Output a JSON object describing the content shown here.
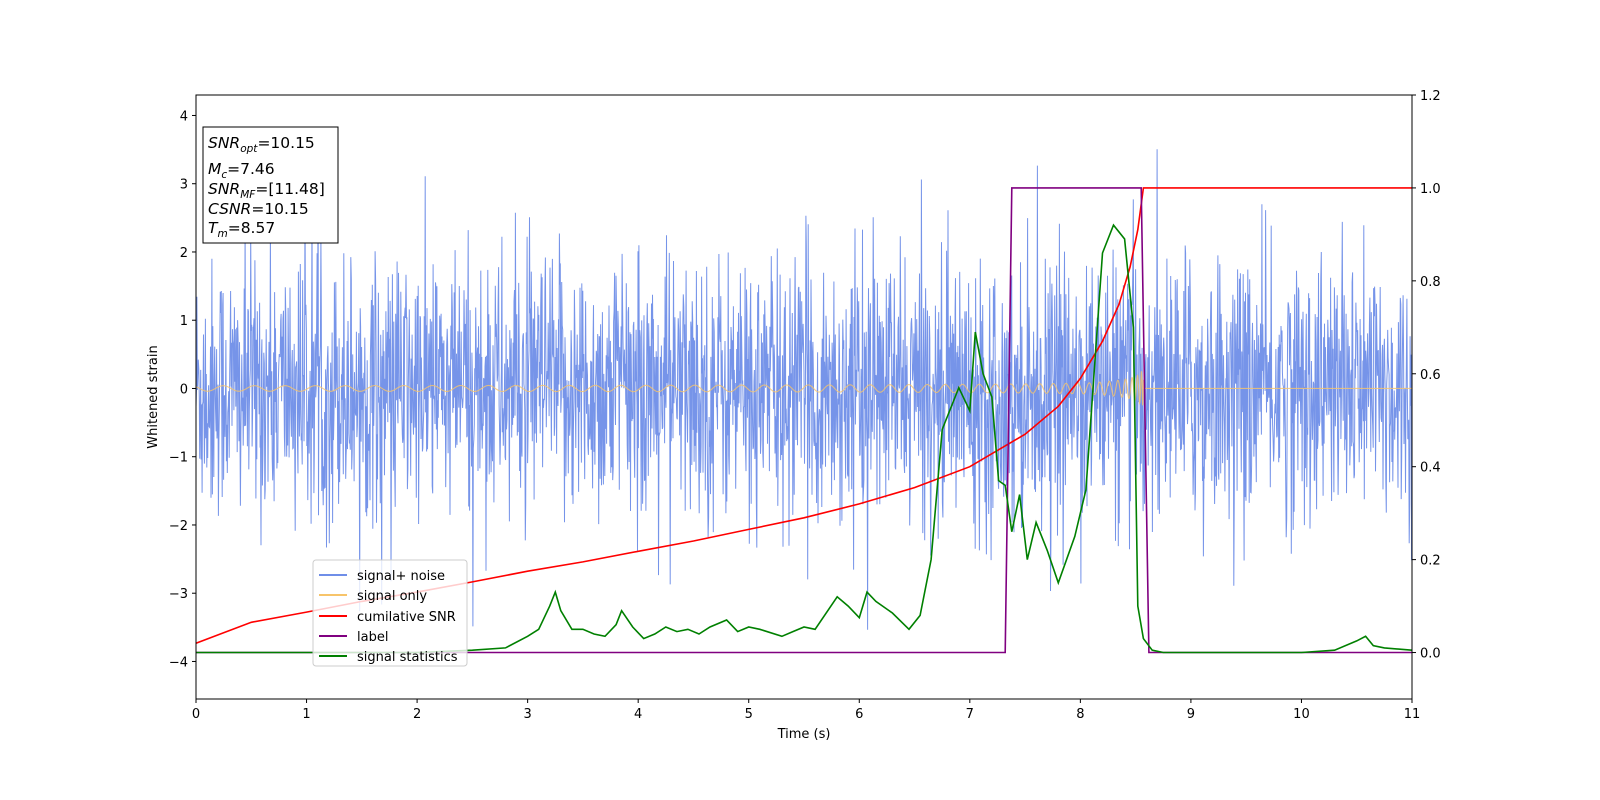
{
  "chart_data": {
    "type": "line",
    "xlabel": "Time (s)",
    "ylabel": "Whitened strain",
    "xlim": [
      0,
      11
    ],
    "ylim_left": [
      -4.55,
      4.3
    ],
    "ylim_right": [
      -0.1,
      1.2
    ],
    "x_ticks": [
      0,
      1,
      2,
      3,
      4,
      5,
      6,
      7,
      8,
      9,
      10,
      11
    ],
    "y_ticks_left": [
      -4,
      -3,
      -2,
      -1,
      0,
      1,
      2,
      3,
      4
    ],
    "y_ticks_right": [
      0.0,
      0.2,
      0.4,
      0.6,
      0.8,
      1.0,
      1.2
    ],
    "grid": false,
    "legend_position": "lower-left",
    "info_box": {
      "line1": "=10.15",
      "line1_var": "SNR",
      "line1_sub": "opt",
      "line2": "=7.46",
      "line2_var": "M",
      "line2_sub": "c",
      "line3": "=[11.48]",
      "line3_var": "SNR",
      "line3_sub": "MF",
      "line4": "=10.15",
      "line4_var": "CSNR",
      "line5": "=8.57",
      "line5_var": "T",
      "line5_sub": "m"
    },
    "series": [
      {
        "name": "signal+ noise",
        "color": "#6f8ee8",
        "axis": "left",
        "kind": "noise",
        "sigma": 0.95
      },
      {
        "name": "signal only",
        "color": "#f7c46a",
        "axis": "left",
        "kind": "chirp",
        "merger_time": 8.57
      },
      {
        "name": "cumilative SNR",
        "color": "#ff0000",
        "axis": "right",
        "x": [
          0,
          0.5,
          1,
          1.5,
          2,
          2.5,
          3,
          3.5,
          4,
          4.5,
          5,
          5.5,
          6,
          6.5,
          7,
          7.5,
          7.8,
          8.0,
          8.2,
          8.35,
          8.45,
          8.52,
          8.57,
          11
        ],
        "y": [
          0.02,
          0.065,
          0.087,
          0.11,
          0.13,
          0.152,
          0.175,
          0.195,
          0.218,
          0.24,
          0.265,
          0.29,
          0.32,
          0.355,
          0.4,
          0.47,
          0.53,
          0.59,
          0.67,
          0.75,
          0.83,
          0.91,
          1.0,
          1.0
        ]
      },
      {
        "name": "label",
        "color": "#800080",
        "axis": "right",
        "x": [
          0,
          7.32,
          7.38,
          8.55,
          8.62,
          11
        ],
        "y": [
          0.0,
          0.0,
          1.0,
          1.0,
          0.0,
          0.0
        ]
      },
      {
        "name": "signal statistics",
        "color": "#008000",
        "axis": "right",
        "x": [
          0,
          0.5,
          1,
          1.5,
          2,
          2.5,
          2.8,
          3.0,
          3.1,
          3.2,
          3.25,
          3.3,
          3.4,
          3.5,
          3.6,
          3.7,
          3.8,
          3.85,
          3.95,
          4.05,
          4.15,
          4.25,
          4.35,
          4.45,
          4.55,
          4.65,
          4.8,
          4.9,
          5.0,
          5.1,
          5.3,
          5.4,
          5.5,
          5.6,
          5.8,
          5.9,
          6.0,
          6.07,
          6.15,
          6.3,
          6.45,
          6.55,
          6.65,
          6.75,
          6.9,
          7.0,
          7.05,
          7.12,
          7.2,
          7.26,
          7.32,
          7.38,
          7.45,
          7.52,
          7.6,
          7.7,
          7.8,
          7.95,
          8.05,
          8.2,
          8.3,
          8.4,
          8.48,
          8.52,
          8.57,
          8.65,
          8.75,
          9.0,
          9.5,
          10.0,
          10.3,
          10.5,
          10.58,
          10.65,
          10.75,
          11.0
        ],
        "y": [
          0.0,
          0.0,
          0.0,
          0.0,
          0.0,
          0.005,
          0.01,
          0.035,
          0.05,
          0.1,
          0.13,
          0.09,
          0.05,
          0.05,
          0.04,
          0.035,
          0.06,
          0.09,
          0.055,
          0.03,
          0.04,
          0.055,
          0.045,
          0.05,
          0.04,
          0.055,
          0.07,
          0.045,
          0.055,
          0.05,
          0.035,
          0.045,
          0.055,
          0.05,
          0.12,
          0.1,
          0.075,
          0.13,
          0.11,
          0.085,
          0.05,
          0.08,
          0.2,
          0.48,
          0.57,
          0.52,
          0.69,
          0.6,
          0.55,
          0.37,
          0.36,
          0.26,
          0.34,
          0.2,
          0.28,
          0.22,
          0.15,
          0.25,
          0.35,
          0.86,
          0.92,
          0.89,
          0.7,
          0.1,
          0.03,
          0.005,
          0.0,
          0.0,
          0.0,
          0.0,
          0.005,
          0.025,
          0.035,
          0.015,
          0.01,
          0.005
        ]
      }
    ]
  }
}
